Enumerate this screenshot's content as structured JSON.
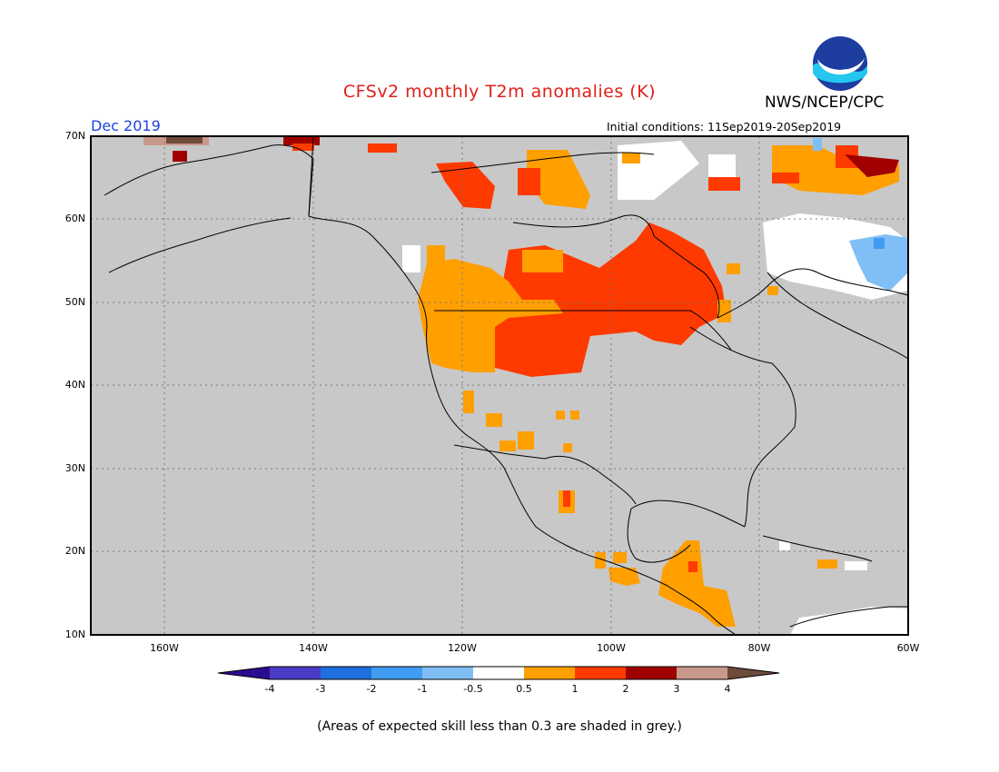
{
  "header": {
    "title": "CFSv2 monthly T2m anomalies (K)",
    "agency": "NWS/NCEP/CPC",
    "logo_text": "NOAA",
    "valid_month": "Dec 2019",
    "initial_conditions": "Initial conditions: 11Sep2019-20Sep2019"
  },
  "map": {
    "region": "North America",
    "lat_labels": [
      "70N",
      "60N",
      "50N",
      "40N",
      "30N",
      "20N",
      "10N"
    ],
    "lon_labels": [
      "160W",
      "140W",
      "120W",
      "100W",
      "80W",
      "60W"
    ],
    "background_color": "#c8c8c8",
    "land_outline_color": "#000000"
  },
  "colorbar": {
    "labels": [
      "-4",
      "-3",
      "-2",
      "-1",
      "-0.5",
      "0.5",
      "1",
      "2",
      "3",
      "4"
    ],
    "colors": [
      "#2a0d8e",
      "#4b3cc8",
      "#1f6fdc",
      "#3f9cf0",
      "#7fbff5",
      "#ffffff",
      "#ff9f00",
      "#ff3a00",
      "#a00000",
      "#c8988a",
      "#6e4a3a"
    ]
  },
  "footnote": "(Areas of expected skill less than 0.3 are shaded in grey.)"
}
